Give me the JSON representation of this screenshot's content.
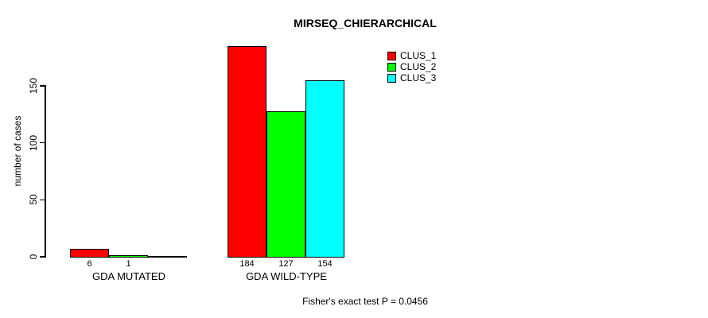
{
  "chart_data": {
    "type": "bar",
    "title": "MIRSEQ_CHIERARCHICAL",
    "categories": [
      "GDA MUTATED",
      "GDA WILD-TYPE"
    ],
    "series": [
      {
        "name": "CLUS_1",
        "color": "#ff0000",
        "values": [
          6,
          184
        ]
      },
      {
        "name": "CLUS_2",
        "color": "#00ff00",
        "values": [
          1,
          127
        ]
      },
      {
        "name": "CLUS_3",
        "color": "#00ffff",
        "values": [
          0,
          154
        ]
      }
    ],
    "bar_value_labels": [
      [
        "6",
        "1",
        ""
      ],
      [
        "184",
        "127",
        "154"
      ]
    ],
    "xlabel": "",
    "ylabel": "number of cases",
    "ylim": [
      0,
      190
    ],
    "yticks": [
      0,
      50,
      100,
      150
    ],
    "grid": false,
    "legend_position": "top-right",
    "annotation": "Fisher's exact test P = 0.0456"
  },
  "y_axis": {
    "label": "number of cases",
    "tick_values": [
      0,
      50,
      100,
      150
    ]
  },
  "legend": {
    "items": [
      {
        "label": "CLUS_1",
        "color": "#ff0000"
      },
      {
        "label": "CLUS_2",
        "color": "#00ff00"
      },
      {
        "label": "CLUS_3",
        "color": "#00ffff"
      }
    ]
  },
  "footer_annotation": "Fisher's exact test P = 0.0456"
}
